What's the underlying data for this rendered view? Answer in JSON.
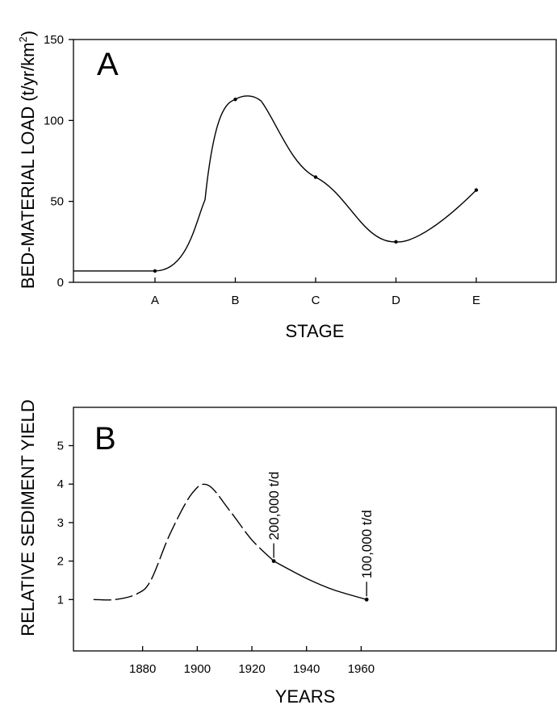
{
  "chart_data": [
    {
      "type": "line",
      "panel_label": "A",
      "xlabel": "STAGE",
      "ylabel": "BED-MATERIAL LOAD (t/yr/km",
      "ylabel_superscript": "2",
      "ylabel_close": ")",
      "categories": [
        "A",
        "B",
        "C",
        "D",
        "E"
      ],
      "y_ticks": [
        0,
        50,
        100,
        150
      ],
      "ylim": [
        0,
        150
      ],
      "grid": false,
      "series": [
        {
          "points": [
            {
              "stage": "A",
              "value": 7
            },
            {
              "stage": "B",
              "value": 113
            },
            {
              "stage": "C",
              "value": 65
            },
            {
              "stage": "D",
              "value": 25
            },
            {
              "stage": "E",
              "value": 57
            }
          ],
          "baseline_before_A": 7,
          "curve_peak_value": 115
        }
      ]
    },
    {
      "type": "line",
      "panel_label": "B",
      "xlabel": "YEARS",
      "ylabel": "RELATIVE SEDIMENT YIELD",
      "x_ticks": [
        1880,
        1900,
        1920,
        1940,
        1960
      ],
      "xlim": [
        1860,
        1980
      ],
      "y_ticks": [
        1,
        2,
        3,
        4,
        5
      ],
      "ylim": [
        0,
        6
      ],
      "grid": false,
      "series": [
        {
          "style": "dashed",
          "points": [
            {
              "x": 1862,
              "y": 1.0
            },
            {
              "x": 1870,
              "y": 1.0
            },
            {
              "x": 1878,
              "y": 1.15
            },
            {
              "x": 1883,
              "y": 1.5
            },
            {
              "x": 1890,
              "y": 2.7
            },
            {
              "x": 1898,
              "y": 3.75
            },
            {
              "x": 1904,
              "y": 3.97
            },
            {
              "x": 1912,
              "y": 3.3
            },
            {
              "x": 1920,
              "y": 2.55
            },
            {
              "x": 1928,
              "y": 2.0
            }
          ]
        },
        {
          "style": "solid",
          "points": [
            {
              "x": 1928,
              "y": 2.0
            },
            {
              "x": 1940,
              "y": 1.55
            },
            {
              "x": 1950,
              "y": 1.25
            },
            {
              "x": 1962,
              "y": 1.0
            }
          ]
        }
      ],
      "markers": [
        {
          "x": 1928,
          "y": 2.0,
          "label": "200,000 t/d"
        },
        {
          "x": 1962,
          "y": 1.0,
          "label": "100,000 t/d"
        }
      ]
    }
  ]
}
